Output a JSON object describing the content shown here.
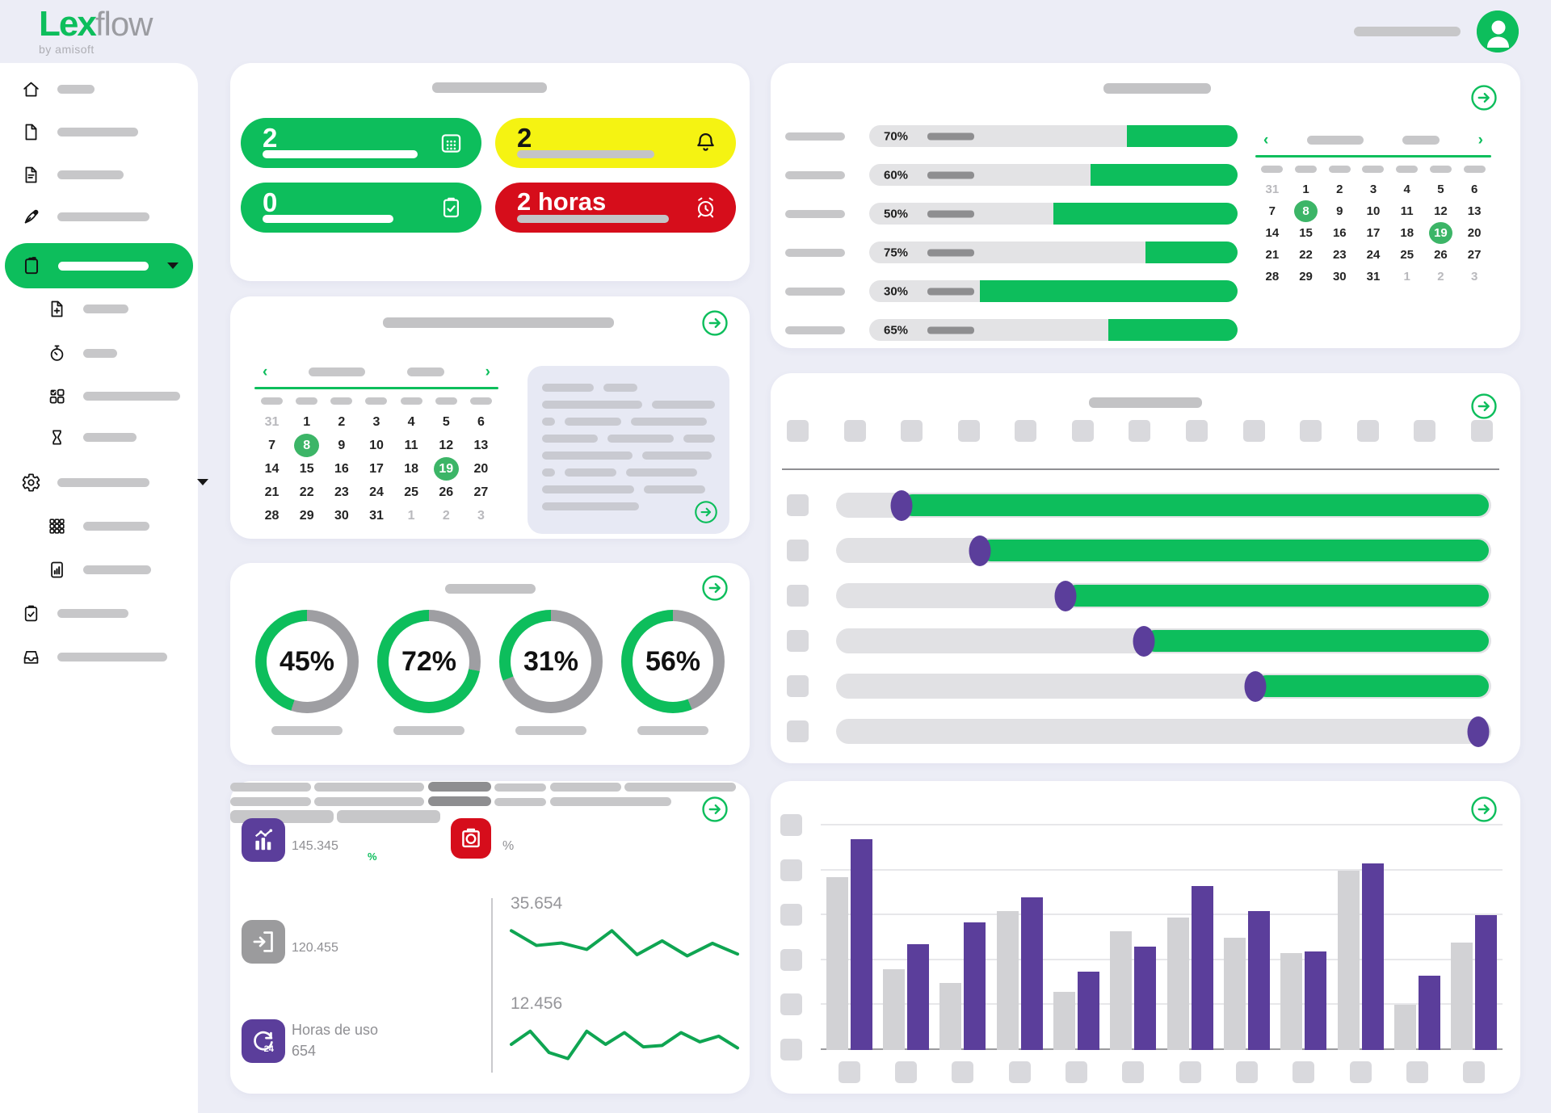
{
  "header": {
    "logo_primary": "Lex",
    "logo_secondary": "flow",
    "logo_tagline": "by amisoft"
  },
  "summary_cards": [
    {
      "value": "2",
      "icon": "calendar-icon",
      "style": "green"
    },
    {
      "value": "2",
      "icon": "bell-icon",
      "style": "yellow"
    },
    {
      "value": "0",
      "icon": "clipboard-check-icon",
      "style": "green"
    },
    {
      "value": "2 horas",
      "icon": "alarm-clock-icon",
      "style": "red"
    }
  ],
  "calendar": {
    "selected_days": [
      "8",
      "19"
    ],
    "weeks": [
      [
        {
          "d": "31",
          "muted": true
        },
        {
          "d": "1"
        },
        {
          "d": "2"
        },
        {
          "d": "3"
        },
        {
          "d": "4"
        },
        {
          "d": "5"
        },
        {
          "d": "6"
        }
      ],
      [
        {
          "d": "7"
        },
        {
          "d": "8",
          "selected": true
        },
        {
          "d": "9"
        },
        {
          "d": "10"
        },
        {
          "d": "11"
        },
        {
          "d": "12"
        },
        {
          "d": "13"
        }
      ],
      [
        {
          "d": "14"
        },
        {
          "d": "15"
        },
        {
          "d": "16"
        },
        {
          "d": "17"
        },
        {
          "d": "18"
        },
        {
          "d": "19",
          "selected": true
        },
        {
          "d": "20"
        }
      ],
      [
        {
          "d": "21"
        },
        {
          "d": "22"
        },
        {
          "d": "23"
        },
        {
          "d": "24"
        },
        {
          "d": "25"
        },
        {
          "d": "26"
        },
        {
          "d": "27"
        }
      ],
      [
        {
          "d": "28"
        },
        {
          "d": "29"
        },
        {
          "d": "30"
        },
        {
          "d": "31"
        },
        {
          "d": "1",
          "muted": true
        },
        {
          "d": "2",
          "muted": true
        },
        {
          "d": "3",
          "muted": true
        }
      ]
    ]
  },
  "progress_card": {
    "values": [
      70,
      60,
      50,
      75,
      30,
      65
    ]
  },
  "gauges": {
    "values": [
      45,
      72,
      31,
      56
    ]
  },
  "sliders": {
    "positions": [
      10,
      22,
      35,
      47,
      64,
      98
    ]
  },
  "stats": {
    "metric1": {
      "value": "145.345",
      "unit_label": "%"
    },
    "metric2": {
      "value": "120.455"
    },
    "metric3": {
      "label": "Horas de uso",
      "value": "654"
    },
    "metric4": {
      "unit_label": "%"
    }
  },
  "chart_data": [
    {
      "type": "bar",
      "title": "",
      "categories": [
        "",
        "",
        "",
        "",
        "",
        "",
        "",
        "",
        "",
        "",
        "",
        ""
      ],
      "series": [
        {
          "name": "gray",
          "color": "#d2d2d5",
          "values": [
            77,
            36,
            30,
            62,
            26,
            53,
            59,
            50,
            43,
            80,
            20,
            48
          ]
        },
        {
          "name": "purple",
          "color": "#5b3e9b",
          "values": [
            94,
            47,
            57,
            68,
            35,
            46,
            73,
            62,
            44,
            83,
            33,
            60
          ]
        }
      ],
      "ylim": [
        0,
        100
      ],
      "grid": true,
      "legend": false
    },
    {
      "type": "line",
      "name": "35.654",
      "color": "#0fa552",
      "values": [
        86,
        38,
        46,
        25,
        86,
        8,
        53,
        4,
        45,
        10
      ]
    },
    {
      "type": "line",
      "name": "12.456",
      "color": "#0fa552",
      "values": [
        50,
        87,
        27,
        10,
        87,
        50,
        83,
        43,
        47,
        83,
        57,
        73,
        40
      ]
    }
  ],
  "colors": {
    "accent_green": "#0dbe5c",
    "alert_yellow": "#f5f312",
    "alert_red": "#d60d1b",
    "accent_purple": "#5b3e9b",
    "bar_gray": "#d2d2d5",
    "donut_gray": "#9e9ea2",
    "background": "#ecedf6"
  },
  "icons": {
    "avatar": "person-silhouette",
    "sidebar": [
      "home",
      "file",
      "file-text",
      "pen",
      "clipboard",
      "file-plus",
      "stopwatch",
      "grid-check",
      "hourglass",
      "gear",
      "grid-9",
      "chart-page",
      "clipboard-check",
      "inbox"
    ],
    "stat_icons": [
      "bar-chart-trend",
      "camera",
      "door-exit",
      "clock-24h"
    ]
  }
}
